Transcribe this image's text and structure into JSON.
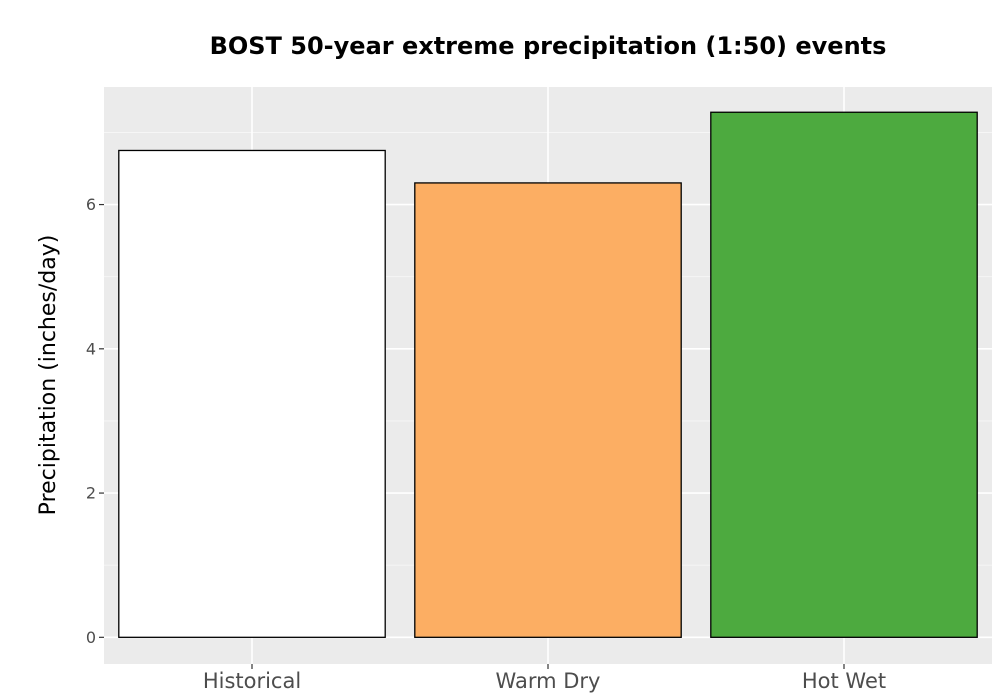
{
  "chart_data": {
    "type": "bar",
    "title": "BOST 50-year extreme precipitation (1:50) events",
    "xlabel": "",
    "ylabel": "Precipitation (inches/day)",
    "categories": [
      "Historical",
      "Warm Dry",
      "Hot Wet"
    ],
    "values": [
      6.75,
      6.3,
      7.28
    ],
    "colors": [
      "#ffffff",
      "#fcae63",
      "#4daa3f"
    ],
    "bar_outline": "#000000",
    "panel_background": "#ebebeb",
    "ylim": [
      -0.37,
      7.63
    ],
    "yticks": [
      0,
      2,
      4,
      6
    ],
    "ytick_labels": [
      "0",
      "2",
      "4",
      "6"
    ],
    "grid": true,
    "legend": "none"
  }
}
